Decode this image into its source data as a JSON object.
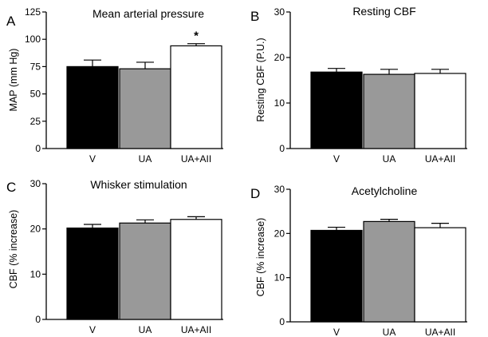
{
  "chart_data": [
    {
      "type": "bar",
      "panel": "A",
      "title": "Mean arterial pressure",
      "xlabel": "",
      "ylabel": "MAP (mm Hg)",
      "categories": [
        "V",
        "UA",
        "UA+AII"
      ],
      "values": [
        75,
        73,
        94
      ],
      "errors": [
        6,
        6,
        2
      ],
      "colors": [
        "#000000",
        "#999999",
        "#ffffff"
      ],
      "ylim": [
        0,
        125
      ],
      "yticks": [
        0,
        25,
        50,
        75,
        100,
        125
      ],
      "annotations": [
        {
          "category": "UA+AII",
          "text": "*"
        }
      ]
    },
    {
      "type": "bar",
      "panel": "B",
      "title": "Resting CBF",
      "xlabel": "",
      "ylabel": "Resting CBF (P.U.)",
      "categories": [
        "V",
        "UA",
        "UA+AII"
      ],
      "values": [
        16.8,
        16.3,
        16.5
      ],
      "errors": [
        0.8,
        1.1,
        0.9
      ],
      "colors": [
        "#000000",
        "#999999",
        "#ffffff"
      ],
      "ylim": [
        0,
        30
      ],
      "yticks": [
        0,
        10,
        20,
        30
      ],
      "annotations": []
    },
    {
      "type": "bar",
      "panel": "C",
      "title": "Whisker stimulation",
      "xlabel": "",
      "ylabel": "CBF (% increase)",
      "categories": [
        "V",
        "UA",
        "UA+AII"
      ],
      "values": [
        20.2,
        21.3,
        22.1
      ],
      "errors": [
        0.8,
        0.7,
        0.6
      ],
      "colors": [
        "#000000",
        "#999999",
        "#ffffff"
      ],
      "ylim": [
        0,
        30
      ],
      "yticks": [
        0,
        10,
        20,
        30
      ],
      "annotations": []
    },
    {
      "type": "bar",
      "panel": "D",
      "title": "Acetylcholine",
      "xlabel": "",
      "ylabel": "CBF (% increase)",
      "categories": [
        "V",
        "UA",
        "UA+AII"
      ],
      "values": [
        20.7,
        22.7,
        21.3
      ],
      "errors": [
        0.7,
        0.5,
        1.0
      ],
      "colors": [
        "#000000",
        "#999999",
        "#ffffff"
      ],
      "ylim": [
        0,
        30
      ],
      "yticks": [
        0,
        10,
        20,
        30
      ],
      "annotations": []
    }
  ]
}
